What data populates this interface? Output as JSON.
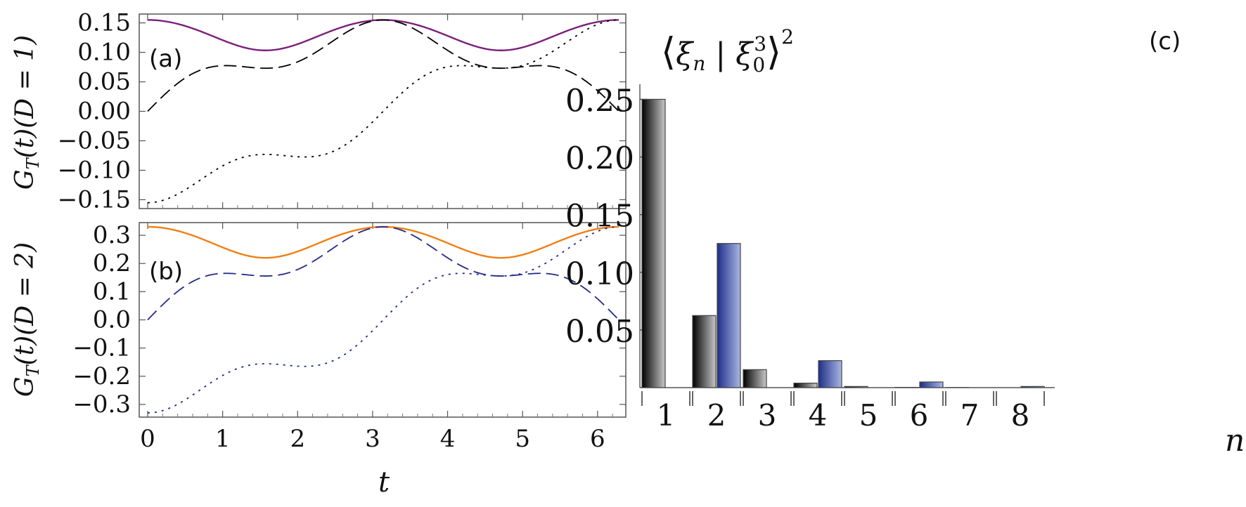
{
  "chart_data": [
    {
      "id": "a",
      "type": "line",
      "panel_label": "(a)",
      "ylabel": "G_T(t)(D = 1)",
      "ylabel_parts": {
        "g": "G",
        "sub": "T",
        "rest": "(t)(D = 1)"
      },
      "xlim": [
        0,
        6.2832
      ],
      "ylim": [
        -0.165,
        0.165
      ],
      "yticks": [
        "0.15",
        "0.10",
        "0.05",
        "0.00",
        "−0.05",
        "−0.10",
        "−0.15"
      ],
      "ytick_values": [
        0.15,
        0.1,
        0.05,
        0.0,
        -0.05,
        -0.1,
        -0.15
      ],
      "series": [
        {
          "name": "envelope",
          "style": "solid",
          "color": "#7b1f7b",
          "amplitude": 0.155,
          "ratio": 1.5
        },
        {
          "name": "dotted",
          "style": "dotted",
          "color": "#000000",
          "amplitude": 0.155,
          "ratio": 1.5,
          "phase": "cos"
        },
        {
          "name": "dashed",
          "style": "dashed",
          "color": "#000000",
          "amplitude": 0.155,
          "ratio": 1.5,
          "phase": "sin"
        }
      ]
    },
    {
      "id": "b",
      "type": "line",
      "panel_label": "(b)",
      "ylabel": "G_T(t)(D = 2)",
      "ylabel_parts": {
        "g": "G",
        "sub": "T",
        "rest": "(t)(D = 2)"
      },
      "xlim": [
        0,
        6.2832
      ],
      "xticks": [
        "0",
        "1",
        "2",
        "3",
        "4",
        "5",
        "6"
      ],
      "xtick_values": [
        0,
        1,
        2,
        3,
        4,
        5,
        6
      ],
      "xlabel": "t",
      "ylim": [
        -0.345,
        0.345
      ],
      "yticks": [
        "0.3",
        "0.2",
        "0.1",
        "0.0",
        "−0.1",
        "−0.2",
        "−0.3"
      ],
      "ytick_values": [
        0.3,
        0.2,
        0.1,
        0.0,
        -0.1,
        -0.2,
        -0.3
      ],
      "series": [
        {
          "name": "envelope",
          "style": "solid",
          "color": "#f07f14",
          "amplitude": 0.33,
          "ratio": 1.5
        },
        {
          "name": "dotted",
          "style": "dotted",
          "color": "#232a8a",
          "amplitude": 0.33,
          "ratio": 1.5,
          "phase": "cos"
        },
        {
          "name": "dashed",
          "style": "dashed",
          "color": "#232a8a",
          "amplitude": 0.33,
          "ratio": 1.5,
          "phase": "sin"
        }
      ]
    },
    {
      "id": "c",
      "type": "bar",
      "panel_label": "(c)",
      "title": "⟨ξ_n | ξ_0^3⟩^2",
      "title_parts": {
        "xi": "ξ",
        "n": "n",
        "sup": "3",
        "zero": "0",
        "pow": "2"
      },
      "xlabel": "n",
      "categories": [
        "1",
        "2",
        "3",
        "4",
        "5",
        "6",
        "7",
        "8"
      ],
      "ylim": [
        0,
        0.26
      ],
      "yticks": [
        "0.25",
        "0.20",
        "0.15",
        "0.10",
        "0.05"
      ],
      "ytick_values": [
        0.25,
        0.2,
        0.15,
        0.1,
        0.05
      ],
      "series": [
        {
          "name": "gray",
          "color": "#1a1a1a",
          "values": [
            0.25,
            0.0625,
            0.0156,
            0.0039,
            0.001,
            0.0002,
            0.0001,
            0.0
          ]
        },
        {
          "name": "blue",
          "color": "#2c3d8f",
          "values": [
            0.0,
            0.125,
            0.0,
            0.0234,
            0.0,
            0.0049,
            0.0,
            0.001
          ]
        }
      ]
    }
  ]
}
